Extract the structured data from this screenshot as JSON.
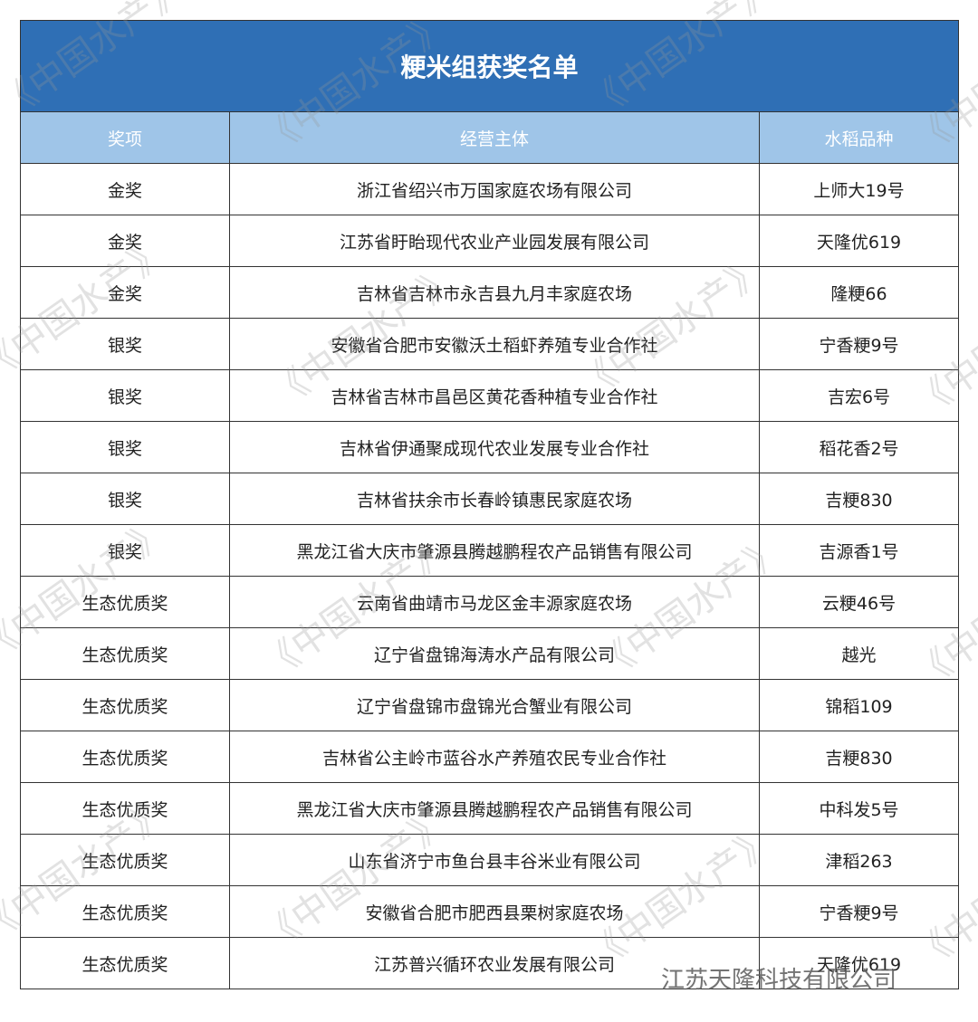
{
  "table": {
    "title": "粳米组获奖名单",
    "columns": [
      "奖项",
      "经营主体",
      "水稻品种"
    ],
    "rows": [
      [
        "金奖",
        "浙江省绍兴市万国家庭农场有限公司",
        "上师大19号"
      ],
      [
        "金奖",
        "江苏省盱眙现代农业产业园发展有限公司",
        "天隆优619"
      ],
      [
        "金奖",
        "吉林省吉林市永吉县九月丰家庭农场",
        "隆粳66"
      ],
      [
        "银奖",
        "安徽省合肥市安徽沃土稻虾养殖专业合作社",
        "宁香粳9号"
      ],
      [
        "银奖",
        "吉林省吉林市昌邑区黄花香种植专业合作社",
        "吉宏6号"
      ],
      [
        "银奖",
        "吉林省伊通聚成现代农业发展专业合作社",
        "稻花香2号"
      ],
      [
        "银奖",
        "吉林省扶余市长春岭镇惠民家庭农场",
        "吉粳830"
      ],
      [
        "银奖",
        "黑龙江省大庆市肇源县腾越鹏程农产品销售有限公司",
        "吉源香1号"
      ],
      [
        "生态优质奖",
        "云南省曲靖市马龙区金丰源家庭农场",
        "云粳46号"
      ],
      [
        "生态优质奖",
        "辽宁省盘锦海涛水产品有限公司",
        "越光"
      ],
      [
        "生态优质奖",
        "辽宁省盘锦市盘锦光合蟹业有限公司",
        "锦稻109"
      ],
      [
        "生态优质奖",
        "吉林省公主岭市蓝谷水产养殖农民专业合作社",
        "吉粳830"
      ],
      [
        "生态优质奖",
        "黑龙江省大庆市肇源县腾越鹏程农产品销售有限公司",
        "中科发5号"
      ],
      [
        "生态优质奖",
        "山东省济宁市鱼台县丰谷米业有限公司",
        "津稻263"
      ],
      [
        "生态优质奖",
        "安徽省合肥市肥西县栗树家庭农场",
        "宁香粳9号"
      ],
      [
        "生态优质奖",
        "江苏普兴循环农业发展有限公司",
        "天隆优619"
      ]
    ]
  },
  "watermark": "《中国水产》",
  "credit": "江苏天隆科技有限公司"
}
